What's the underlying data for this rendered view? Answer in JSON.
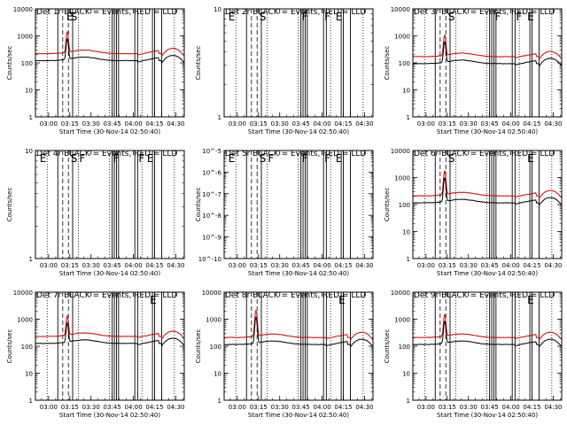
{
  "figure": {
    "x_tick_labels": [
      "03:00",
      "03:15",
      "03:30",
      "03:45",
      "04:00",
      "04:15",
      "04:30"
    ],
    "xlabel": "Start Time (30-Nov-14 02:50:40)",
    "ylabel": "Counts/sec"
  },
  "chart_data": [
    {
      "type": "line",
      "title": "Det 1r BLACK = Events, RED = LLD",
      "ylabel": "Counts/sec",
      "xlabel": "Start Time (30-Nov-14 02:50:40)",
      "y_scale": "log",
      "ylim": [
        1,
        10000
      ],
      "y_ticks": [
        1,
        10,
        100,
        1000,
        10000
      ],
      "y_tick_labels": [
        "1",
        "10",
        "100",
        "1000",
        "10000"
      ],
      "markers": [
        {
          "time": "03:12",
          "label": "E"
        },
        {
          "time": "03:15",
          "label": "S"
        }
      ],
      "profile": {
        "base": 220,
        "peak": 1400
      },
      "series": [
        {
          "name": "Events",
          "color": "#000000"
        },
        {
          "name": "LLD",
          "color": "#d40000"
        }
      ]
    },
    {
      "type": "line",
      "title": "Det 2r BLACK = Events, RED = LLD",
      "ylabel": "Counts/sec",
      "xlabel": "Start Time (30-Nov-14 02:50:40)",
      "y_scale": "log",
      "ylim": [
        1,
        10
      ],
      "y_ticks": [
        1,
        10
      ],
      "y_tick_labels": [
        "1",
        "10"
      ],
      "markers": [
        {
          "time": "02:53",
          "label": "E"
        },
        {
          "time": "03:15",
          "label": "S"
        },
        {
          "time": "03:45",
          "label": "F"
        },
        {
          "time": "04:01",
          "label": "F"
        },
        {
          "time": "04:09",
          "label": "E"
        }
      ],
      "profile": null,
      "series": []
    },
    {
      "type": "line",
      "title": "Det 3r BLACK = Events, RED = LLD",
      "ylabel": "Counts/sec",
      "xlabel": "Start Time (30-Nov-14 02:50:40)",
      "y_scale": "log",
      "ylim": [
        1,
        10000
      ],
      "y_ticks": [
        1,
        10,
        100,
        1000,
        10000
      ],
      "y_tick_labels": [
        "1",
        "10",
        "100",
        "1000",
        "10000"
      ],
      "markers": [
        {
          "time": "03:15",
          "label": "S"
        },
        {
          "time": "03:48",
          "label": "F"
        },
        {
          "time": "04:03",
          "label": "F"
        },
        {
          "time": "04:11",
          "label": "E"
        }
      ],
      "profile": {
        "base": 170,
        "peak": 1100
      },
      "series": [
        {
          "name": "Events",
          "color": "#000000"
        },
        {
          "name": "LLD",
          "color": "#d40000"
        }
      ]
    },
    {
      "type": "line",
      "title": "Det 4r BLACK = Events, RED = LLD",
      "ylabel": "Counts/sec",
      "xlabel": "Start Time (30-Nov-14 02:50:40)",
      "y_scale": "log",
      "ylim": [
        1,
        10
      ],
      "y_ticks": [
        1,
        10
      ],
      "y_tick_labels": [
        "1",
        "10"
      ],
      "markers": [
        {
          "time": "02:53",
          "label": "E"
        },
        {
          "time": "03:15",
          "label": "S"
        },
        {
          "time": "03:21",
          "label": "F"
        },
        {
          "time": "03:45",
          "label": "F"
        },
        {
          "time": "04:03",
          "label": "F"
        },
        {
          "time": "04:09",
          "label": "E"
        }
      ],
      "profile": null,
      "series": []
    },
    {
      "type": "line",
      "title": "Det 5r BLACK = Events, RED = LLD",
      "ylabel": "Counts/sec",
      "xlabel": "Start Time (30-Nov-14 02:50:40)",
      "y_scale": "log",
      "ylim": [
        1e-10,
        1e-05
      ],
      "y_ticks": [
        1e-10,
        1e-09,
        1e-08,
        1e-07,
        1e-06,
        1e-05
      ],
      "y_tick_labels": [
        "10^-10",
        "10^-9",
        "10^-8",
        "10^-7",
        "10^-6",
        "10^-5"
      ],
      "markers": [
        {
          "time": "02:53",
          "label": "E"
        },
        {
          "time": "03:15",
          "label": "S"
        },
        {
          "time": "03:21",
          "label": "F"
        },
        {
          "time": "03:45",
          "label": "F"
        },
        {
          "time": "04:01",
          "label": "F"
        },
        {
          "time": "04:09",
          "label": "E"
        }
      ],
      "profile": null,
      "series": []
    },
    {
      "type": "line",
      "title": "Det 6r BLACK = Events, RED = LLD",
      "ylabel": "Counts/sec",
      "xlabel": "Start Time (30-Nov-14 02:50:40)",
      "y_scale": "log",
      "ylim": [
        1,
        10000
      ],
      "y_ticks": [
        1,
        10,
        100,
        1000,
        10000
      ],
      "y_tick_labels": [
        "1",
        "10",
        "100",
        "1000",
        "10000"
      ],
      "markers": [
        {
          "time": "03:15",
          "label": "S"
        },
        {
          "time": "04:11",
          "label": "E"
        }
      ],
      "profile": {
        "base": 210,
        "peak": 1800
      },
      "series": [
        {
          "name": "Events",
          "color": "#000000"
        },
        {
          "name": "LLD",
          "color": "#d40000"
        }
      ]
    },
    {
      "type": "line",
      "title": "Det 7r BLACK = Events, RED = LLD",
      "ylabel": "Counts/sec",
      "xlabel": "Start Time (30-Nov-14 02:50:40)",
      "y_scale": "log",
      "ylim": [
        1,
        10000
      ],
      "y_ticks": [
        1,
        10,
        100,
        1000,
        10000
      ],
      "y_tick_labels": [
        "1",
        "10",
        "100",
        "1000",
        "10000"
      ],
      "markers": [
        {
          "time": "04:11",
          "label": "E"
        }
      ],
      "profile": {
        "base": 230,
        "peak": 1300
      },
      "series": [
        {
          "name": "Events",
          "color": "#000000"
        },
        {
          "name": "LLD",
          "color": "#d40000"
        }
      ]
    },
    {
      "type": "line",
      "title": "Det 8r BLACK = Events, RED = LLD",
      "ylabel": "Counts/sec",
      "xlabel": "Start Time (30-Nov-14 02:50:40)",
      "y_scale": "log",
      "ylim": [
        1,
        10000
      ],
      "y_ticks": [
        1,
        10,
        100,
        1000,
        10000
      ],
      "y_tick_labels": [
        "1",
        "10",
        "100",
        "1000",
        "10000"
      ],
      "markers": [
        {
          "time": "04:11",
          "label": "E"
        }
      ],
      "profile": {
        "base": 210,
        "peak": 2200
      },
      "series": [
        {
          "name": "Events",
          "color": "#000000"
        },
        {
          "name": "LLD",
          "color": "#d40000"
        }
      ]
    },
    {
      "type": "line",
      "title": "Det 9r BLACK = Events, RED = LLD",
      "ylabel": "Counts/sec",
      "xlabel": "Start Time (30-Nov-14 02:50:40)",
      "y_scale": "log",
      "ylim": [
        1,
        10000
      ],
      "y_ticks": [
        1,
        10,
        100,
        1000,
        10000
      ],
      "y_tick_labels": [
        "1",
        "10",
        "100",
        "1000",
        "10000"
      ],
      "markers": [
        {
          "time": "04:11",
          "label": "E"
        }
      ],
      "profile": {
        "base": 210,
        "peak": 1500
      },
      "series": [
        {
          "name": "Events",
          "color": "#000000"
        },
        {
          "name": "LLD",
          "color": "#d40000"
        }
      ]
    }
  ]
}
